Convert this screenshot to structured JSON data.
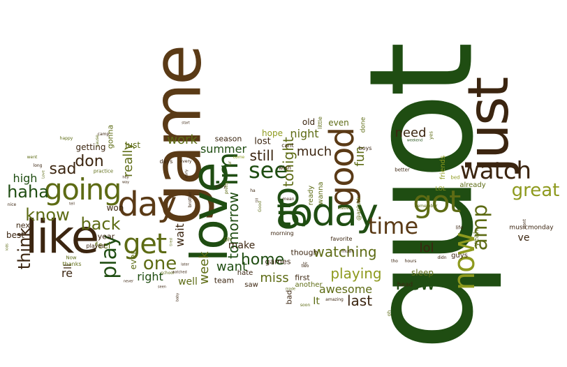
{
  "palette": {
    "dark_green": "#1f4d12",
    "olive": "#5d6b14",
    "yellow_green": "#8e9a1e",
    "brown": "#5a3a16",
    "dark_brown": "#3b2510"
  },
  "words": [
    {
      "text": "quot",
      "color": "dark_green"
    },
    {
      "text": "just",
      "color": "dark_brown"
    },
    {
      "text": "game",
      "color": "brown"
    },
    {
      "text": "love",
      "color": "dark_green"
    },
    {
      "text": "like",
      "color": "dark_brown"
    },
    {
      "text": "today",
      "color": "dark_green"
    },
    {
      "text": "good",
      "color": "brown"
    },
    {
      "text": "day",
      "color": "brown"
    },
    {
      "text": "going",
      "color": "olive"
    },
    {
      "text": "got",
      "color": "olive"
    },
    {
      "text": "now",
      "color": "yellow_green"
    },
    {
      "text": "go",
      "color": "dark_green"
    },
    {
      "text": "im",
      "color": "dark_green"
    },
    {
      "text": "get",
      "color": "olive"
    },
    {
      "text": "watch",
      "color": "dark_brown"
    },
    {
      "text": "time",
      "color": "brown"
    },
    {
      "text": "see",
      "color": "dark_green"
    },
    {
      "text": "amp",
      "color": "olive"
    },
    {
      "text": "great",
      "color": "yellow_green"
    },
    {
      "text": "play",
      "color": "dark_green"
    },
    {
      "text": "new",
      "color": "dark_green"
    },
    {
      "text": "one",
      "color": "olive"
    },
    {
      "text": "haha",
      "color": "dark_green"
    },
    {
      "text": "know",
      "color": "olive"
    },
    {
      "text": "back",
      "color": "olive"
    },
    {
      "text": "sad",
      "color": "dark_brown"
    },
    {
      "text": "don",
      "color": "dark_brown"
    },
    {
      "text": "think",
      "color": "dark_brown"
    },
    {
      "text": "watching",
      "color": "olive"
    },
    {
      "text": "playing",
      "color": "yellow_green"
    },
    {
      "text": "home",
      "color": "dark_green"
    },
    {
      "text": "work",
      "color": "olive"
    },
    {
      "text": "tomorrow",
      "color": "dark_green"
    },
    {
      "text": "much",
      "color": "dark_brown"
    },
    {
      "text": "tonight",
      "color": "olive"
    },
    {
      "text": "still",
      "color": "dark_brown"
    },
    {
      "text": "night",
      "color": "olive"
    },
    {
      "text": "fun",
      "color": "olive"
    },
    {
      "text": "need",
      "color": "dark_brown"
    },
    {
      "text": "lol",
      "color": "dark_brown"
    },
    {
      "text": "last",
      "color": "dark_brown"
    },
    {
      "text": "miss",
      "color": "olive"
    },
    {
      "text": "want",
      "color": "dark_green"
    },
    {
      "text": "summer",
      "color": "dark_green"
    },
    {
      "text": "week",
      "color": "olive"
    },
    {
      "text": "really",
      "color": "olive"
    },
    {
      "text": "awesome",
      "color": "olive"
    },
    {
      "text": "high",
      "color": "dark_green"
    },
    {
      "text": "wait",
      "color": "dark_brown"
    },
    {
      "text": "right",
      "color": "dark_green"
    },
    {
      "text": "well",
      "color": "olive"
    },
    {
      "text": "make",
      "color": "dark_brown"
    },
    {
      "text": "hope",
      "color": "yellow_green"
    },
    {
      "text": "It",
      "color": "olive"
    },
    {
      "text": "even",
      "color": "olive"
    },
    {
      "text": "ve",
      "color": "dark_brown"
    },
    {
      "text": "re",
      "color": "dark_brown"
    },
    {
      "text": "ll",
      "color": "dark_brown"
    },
    {
      "text": "old",
      "color": "dark_brown"
    },
    {
      "text": "lost",
      "color": "dark_brown"
    },
    {
      "text": "getting",
      "color": "dark_brown"
    },
    {
      "text": "won",
      "color": "dark_brown"
    },
    {
      "text": "best",
      "color": "dark_brown"
    },
    {
      "text": "feel",
      "color": "olive"
    },
    {
      "text": "gonna",
      "color": "olive"
    },
    {
      "text": "Just",
      "color": "olive"
    },
    {
      "text": "ever",
      "color": "olive"
    },
    {
      "text": "year",
      "color": "dark_brown"
    },
    {
      "text": "season",
      "color": "dark_brown"
    },
    {
      "text": "team",
      "color": "dark_brown"
    },
    {
      "text": "games",
      "color": "dark_brown"
    },
    {
      "text": "though",
      "color": "dark_brown"
    },
    {
      "text": "first",
      "color": "dark_brown"
    },
    {
      "text": "bad",
      "color": "dark_brown"
    },
    {
      "text": "sleep",
      "color": "olive"
    },
    {
      "text": "hate",
      "color": "dark_brown"
    },
    {
      "text": "saw",
      "color": "dark_brown"
    },
    {
      "text": "next",
      "color": "dark_brown"
    },
    {
      "text": "friends",
      "color": "yellow_green"
    },
    {
      "text": "already",
      "color": "olive"
    },
    {
      "text": "musicmonday",
      "color": "dark_brown"
    },
    {
      "text": "another",
      "color": "olive"
    },
    {
      "text": "yeah",
      "color": "olive"
    },
    {
      "text": "guys",
      "color": "dark_brown"
    },
    {
      "text": "head",
      "color": "dark_brown"
    },
    {
      "text": "wanna",
      "color": "olive"
    },
    {
      "text": "ready",
      "color": "olive"
    },
    {
      "text": "favorite",
      "color": "dark_brown"
    },
    {
      "text": "morning",
      "color": "dark_brown"
    },
    {
      "text": "done",
      "color": "olive"
    },
    {
      "text": "boys",
      "color": "dark_brown"
    },
    {
      "text": "little",
      "color": "olive"
    },
    {
      "text": "wish",
      "color": "dark_brown"
    },
    {
      "text": "cant",
      "color": "dark_brown"
    },
    {
      "text": "@aplusk",
      "color": "olive"
    },
    {
      "text": "Oh",
      "color": "olive"
    },
    {
      "text": "days",
      "color": "dark_brown"
    },
    {
      "text": "practice",
      "color": "olive"
    },
    {
      "text": "played",
      "color": "dark_brown"
    },
    {
      "text": "thanks",
      "color": "olive"
    },
    {
      "text": "school",
      "color": "olive"
    },
    {
      "text": "Now",
      "color": "olive"
    },
    {
      "text": "better",
      "color": "dark_brown"
    },
    {
      "text": "LOL",
      "color": "yellow_green"
    },
    {
      "text": "bed",
      "color": "yellow_green"
    },
    {
      "text": "life",
      "color": "dark_brown"
    },
    {
      "text": "tho",
      "color": "dark_brown"
    },
    {
      "text": "hours",
      "color": "dark_brown"
    },
    {
      "text": "didn",
      "color": "dark_brown"
    },
    {
      "text": "dont",
      "color": "dark_brown"
    },
    {
      "text": "weekend",
      "color": "dark_green"
    },
    {
      "text": "yes",
      "color": "olive"
    },
    {
      "text": "iremember",
      "color": "olive"
    },
    {
      "text": "music",
      "color": "dark_brown"
    },
    {
      "text": "mean",
      "color": "dark_brown"
    },
    {
      "text": "two",
      "color": "dark_brown"
    },
    {
      "text": "haven",
      "color": "olive"
    },
    {
      "text": "hit",
      "color": "dark_brown"
    },
    {
      "text": "amazing",
      "color": "dark_brown"
    },
    {
      "text": "soon",
      "color": "olive"
    },
    {
      "text": "oh",
      "color": "olive"
    },
    {
      "text": "made",
      "color": "olive"
    },
    {
      "text": "come",
      "color": "yellow_green"
    },
    {
      "text": "ur",
      "color": "olive"
    },
    {
      "text": "pretty",
      "color": "olive"
    },
    {
      "text": "sorry",
      "color": "dark_brown"
    },
    {
      "text": "ha",
      "color": "dark_brown"
    },
    {
      "text": "till",
      "color": "dark_brown"
    },
    {
      "text": "Good",
      "color": "olive"
    },
    {
      "text": "start",
      "color": "dark_brown"
    },
    {
      "text": "every",
      "color": "dark_brown"
    },
    {
      "text": "early",
      "color": "dark_brown"
    },
    {
      "text": "brother",
      "color": "dark_brown"
    },
    {
      "text": "tired",
      "color": "olive"
    },
    {
      "text": "later",
      "color": "dark_brown"
    },
    {
      "text": "watched",
      "color": "dark_brown"
    },
    {
      "text": "seen",
      "color": "dark_brown"
    },
    {
      "text": "never",
      "color": "dark_brown"
    },
    {
      "text": "baby",
      "color": "dark_brown"
    },
    {
      "text": "camp",
      "color": "dark_brown"
    },
    {
      "text": "cause",
      "color": "olive"
    },
    {
      "text": "happy",
      "color": "olive"
    },
    {
      "text": "hey",
      "color": "dark_brown"
    },
    {
      "text": "way",
      "color": "dark_brown"
    },
    {
      "text": "tell",
      "color": "dark_brown"
    },
    {
      "text": "went",
      "color": "olive"
    },
    {
      "text": "long",
      "color": "dark_brown"
    },
    {
      "text": "Love",
      "color": "olive"
    },
    {
      "text": "nice",
      "color": "dark_brown"
    },
    {
      "text": "kids",
      "color": "olive"
    }
  ]
}
